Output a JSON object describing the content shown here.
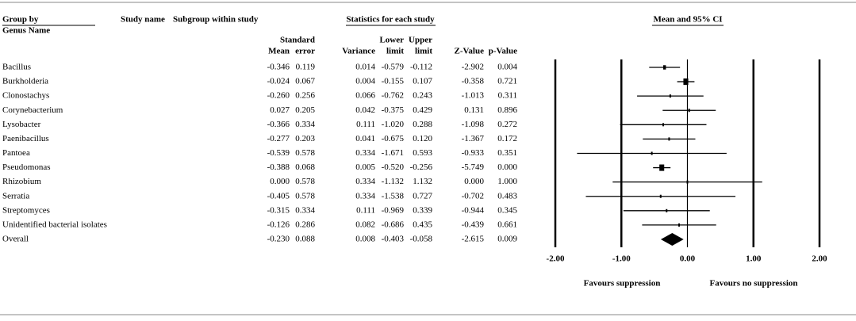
{
  "table": {
    "group_by": "Group by",
    "genus_header": "Genus Name",
    "study_name": "Study name",
    "subgroup": "Subgroup within study",
    "stats_title": "Statistics for each study",
    "columns": [
      [
        "Mean"
      ],
      [
        "Standard",
        "error"
      ],
      [
        "Variance"
      ],
      [
        "Lower",
        "limit"
      ],
      [
        "Upper",
        "limit"
      ],
      [
        "Z-Value"
      ],
      [
        "p-Value"
      ]
    ],
    "rows": [
      [
        "Bacillus",
        "-0.346",
        "0.119",
        "0.014",
        "-0.579",
        "-0.112",
        "-2.902",
        "0.004"
      ],
      [
        "Burkholderia",
        "-0.024",
        "0.067",
        "0.004",
        "-0.155",
        "0.107",
        "-0.358",
        "0.721"
      ],
      [
        "Clonostachys",
        "-0.260",
        "0.256",
        "0.066",
        "-0.762",
        "0.243",
        "-1.013",
        "0.311"
      ],
      [
        "Corynebacterium",
        "0.027",
        "0.205",
        "0.042",
        "-0.375",
        "0.429",
        "0.131",
        "0.896"
      ],
      [
        "Lysobacter",
        "-0.366",
        "0.334",
        "0.111",
        "-1.020",
        "0.288",
        "-1.098",
        "0.272"
      ],
      [
        "Paenibacillus",
        "-0.277",
        "0.203",
        "0.041",
        "-0.675",
        "0.120",
        "-1.367",
        "0.172"
      ],
      [
        "Pantoea",
        "-0.539",
        "0.578",
        "0.334",
        "-1.671",
        "0.593",
        "-0.933",
        "0.351"
      ],
      [
        "Pseudomonas",
        "-0.388",
        "0.068",
        "0.005",
        "-0.520",
        "-0.256",
        "-5.749",
        "0.000"
      ],
      [
        "Rhizobium",
        "0.000",
        "0.578",
        "0.334",
        "-1.132",
        "1.132",
        "0.000",
        "1.000"
      ],
      [
        "Serratia",
        "-0.405",
        "0.578",
        "0.334",
        "-1.538",
        "0.727",
        "-0.702",
        "0.483"
      ],
      [
        "Streptomyces",
        "-0.315",
        "0.334",
        "0.111",
        "-0.969",
        "0.339",
        "-0.944",
        "0.345"
      ],
      [
        "Unidentified bacterial isolates",
        "-0.126",
        "0.286",
        "0.082",
        "-0.686",
        "0.435",
        "-0.439",
        "0.661"
      ],
      [
        "Overall",
        "-0.230",
        "0.088",
        "0.008",
        "-0.403",
        "-0.058",
        "-2.615",
        "0.009"
      ]
    ]
  },
  "chart_data": {
    "type": "forest",
    "title": "Mean and 95% CI",
    "values": [
      -0.346,
      -0.024,
      -0.26,
      0.027,
      -0.366,
      -0.277,
      -0.539,
      -0.388,
      0,
      -0.405,
      -0.315,
      -0.126,
      -0.23
    ],
    "lower": [
      -0.579,
      -0.155,
      -0.762,
      -0.375,
      -1.02,
      -0.675,
      -1.671,
      -0.52,
      -1.132,
      -1.538,
      -0.969,
      -0.686,
      -0.403
    ],
    "upper": [
      -0.112,
      0.107,
      0.243,
      0.429,
      0.288,
      0.12,
      0.593,
      -0.256,
      1.132,
      0.727,
      0.339,
      0.435,
      -0.058
    ],
    "xlim": [
      -2,
      2
    ],
    "xticks": [
      {
        "value": -2,
        "label": "-2.00"
      },
      {
        "value": -1,
        "label": "-1.00"
      },
      {
        "value": 0,
        "label": "0.00"
      },
      {
        "value": 1,
        "label": "1.00"
      },
      {
        "value": 2,
        "label": "2.00"
      }
    ],
    "annotations": [
      "Favours suppression",
      "Favours no suppression"
    ]
  }
}
